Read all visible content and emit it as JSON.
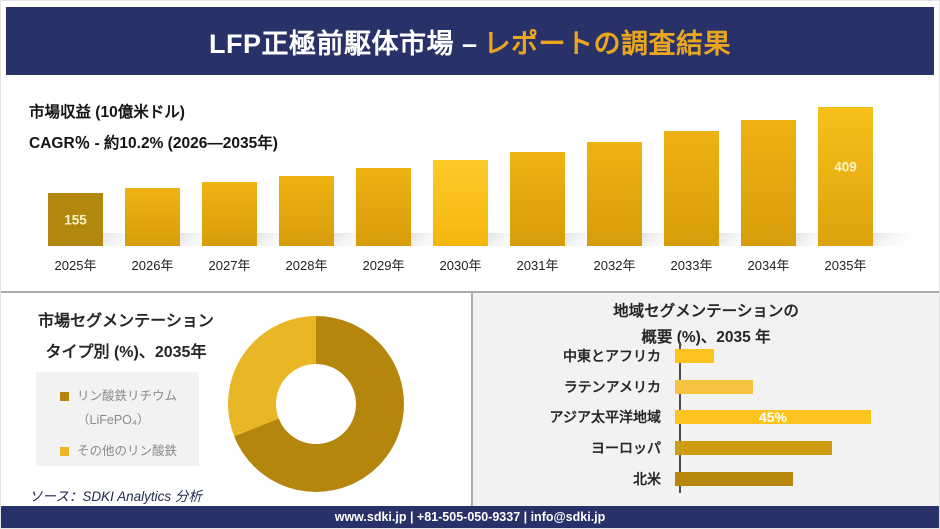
{
  "header": {
    "title_white": "LFP正極前駆体市場 –",
    "title_accent": "レポートの調査結果"
  },
  "colors": {
    "navy": "#293268",
    "accent": "#eaa61e",
    "panel_gray": "#f2f2f2",
    "divider": "#ababab",
    "axis": "#4d4d4d",
    "value_label": "#fdf3c8",
    "bar_first": "#b1870e",
    "bar_top": "#efb213",
    "bar_bottom": "#d79d0b",
    "bar_highlight_top": "#ffc92a",
    "bar_highlight_bottom": "#f3b70d",
    "bar_last_top": "#f7c01b",
    "bar_last_bottom": "#dda30d",
    "donut_dark": "#b5860d",
    "donut_light": "#e9b625"
  },
  "chart_data": [
    {
      "type": "bar",
      "title": "市場収益 (10億米ドル)",
      "subtitle": "CAGR％ - 約10.2% (2026―2035年)",
      "categories": [
        "2025年",
        "2026年",
        "2027年",
        "2028年",
        "2029年",
        "2030年",
        "2031年",
        "2032年",
        "2033年",
        "2034年",
        "2035年"
      ],
      "values": [
        155,
        171,
        188,
        207,
        229,
        252,
        278,
        306,
        337,
        372,
        409
      ],
      "data_labels": {
        "2025年": "155",
        "2035年": "409"
      },
      "highlight_category": "2030年",
      "ylim": [
        0,
        409
      ],
      "grid": false,
      "legend_position": "none"
    },
    {
      "type": "pie",
      "donut": true,
      "title_line1": "市場セグメンテーション",
      "title_line2": "タイプ別 (%)、2035年",
      "legend_position": "left",
      "slices": [
        {
          "label_line1": "リン酸鉄リチウム",
          "label_line2": "（LiFePO₄）",
          "value": 69,
          "color": "#b5860d"
        },
        {
          "label_line1": "その他のリン酸鉄",
          "value": 31,
          "color": "#e9b625"
        }
      ]
    },
    {
      "type": "bar",
      "orientation": "horizontal",
      "title_line1": "地域セグメンテーションの",
      "title_line2": "概要 (%)、2035 年",
      "categories": [
        "中東とアフリカ",
        "ラテンアメリカ",
        "アジア太平洋地域",
        "ヨーロッパ",
        "北米"
      ],
      "values": [
        9,
        18,
        45,
        36,
        27
      ],
      "data_labels": {
        "アジア太平洋地域": "45%"
      },
      "bar_colors": [
        "#fcc21d",
        "#f6c33e",
        "#fcc21d",
        "#d09d12",
        "#b8860b"
      ],
      "xlim": [
        0,
        48
      ],
      "grid": false,
      "legend_position": "none"
    }
  ],
  "source": {
    "text": "ソース：SDKI Analytics 分析"
  },
  "footer": {
    "text": "www.sdki.jp | +81-505-050-9337 | info@sdki.jp"
  }
}
